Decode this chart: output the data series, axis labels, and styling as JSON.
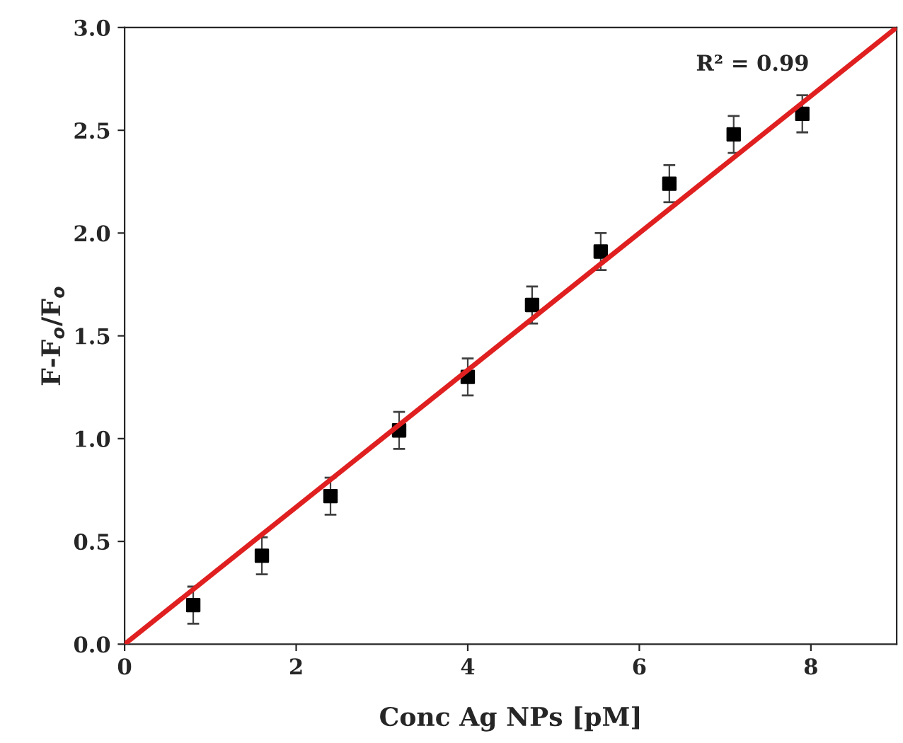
{
  "chart_data": {
    "type": "scatter",
    "xlabel": "Conc Ag NPs [pM]",
    "ylabel": "F-F$_{o}$/F$_{o}$",
    "annotations": [
      "R² = 0.99"
    ],
    "xlim": [
      0,
      9
    ],
    "xticks": [
      0,
      2,
      4,
      6,
      8
    ],
    "ylim": [
      0,
      3.0
    ],
    "yticks": [
      {
        "value": 0,
        "label": "0.0"
      },
      {
        "value": 0.5,
        "label": "0.5"
      },
      {
        "value": 1.0,
        "label": "1.0"
      },
      {
        "value": 1.5,
        "label": "1.5"
      },
      {
        "value": 2.0,
        "label": "2.0"
      },
      {
        "value": 2.5,
        "label": "2.5"
      },
      {
        "value": 3.0,
        "label": "3.0"
      }
    ],
    "grid": false,
    "legend": false,
    "series": [
      {
        "color": "#000000",
        "marker": "square",
        "x": [
          0.8,
          1.6,
          2.4,
          3.2,
          4.0,
          4.75,
          5.55,
          6.35,
          7.1,
          7.9
        ],
        "values": [
          0.19,
          0.43,
          0.72,
          1.04,
          1.3,
          1.65,
          1.91,
          2.24,
          2.48,
          2.58
        ],
        "errors": [
          0.09,
          0.09,
          0.09,
          0.09,
          0.09,
          0.09,
          0.09,
          0.09,
          0.09,
          0.09
        ]
      },
      {
        "type": "line",
        "color": "#e02020",
        "line_style": "solid",
        "marker": "none",
        "x": [
          0,
          9
        ],
        "values": [
          0,
          3.0
        ]
      }
    ]
  }
}
